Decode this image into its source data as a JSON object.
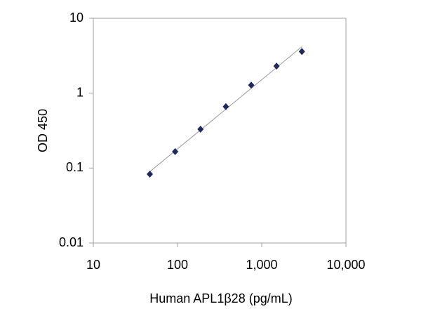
{
  "chart_data": {
    "type": "scatter",
    "x_label": "Human APL1β28 (pg/mL)",
    "y_label": "OD 450",
    "x": [
      46.875,
      93.75,
      187.5,
      375,
      750,
      1500,
      3000
    ],
    "values": [
      0.083,
      0.166,
      0.33,
      0.66,
      1.28,
      2.3,
      3.6
    ],
    "color": "#1f2a5c",
    "trendline": true,
    "x_log": true,
    "y_log": true,
    "xlim": [
      10,
      10000
    ],
    "ylim": [
      0.01,
      10
    ],
    "xticks": [
      10,
      100,
      {
        "value": 1000,
        "label": "1,000"
      },
      {
        "value": 10000,
        "label": "10,000"
      }
    ],
    "yticks": [
      0.01,
      0.1,
      1,
      10
    ]
  }
}
